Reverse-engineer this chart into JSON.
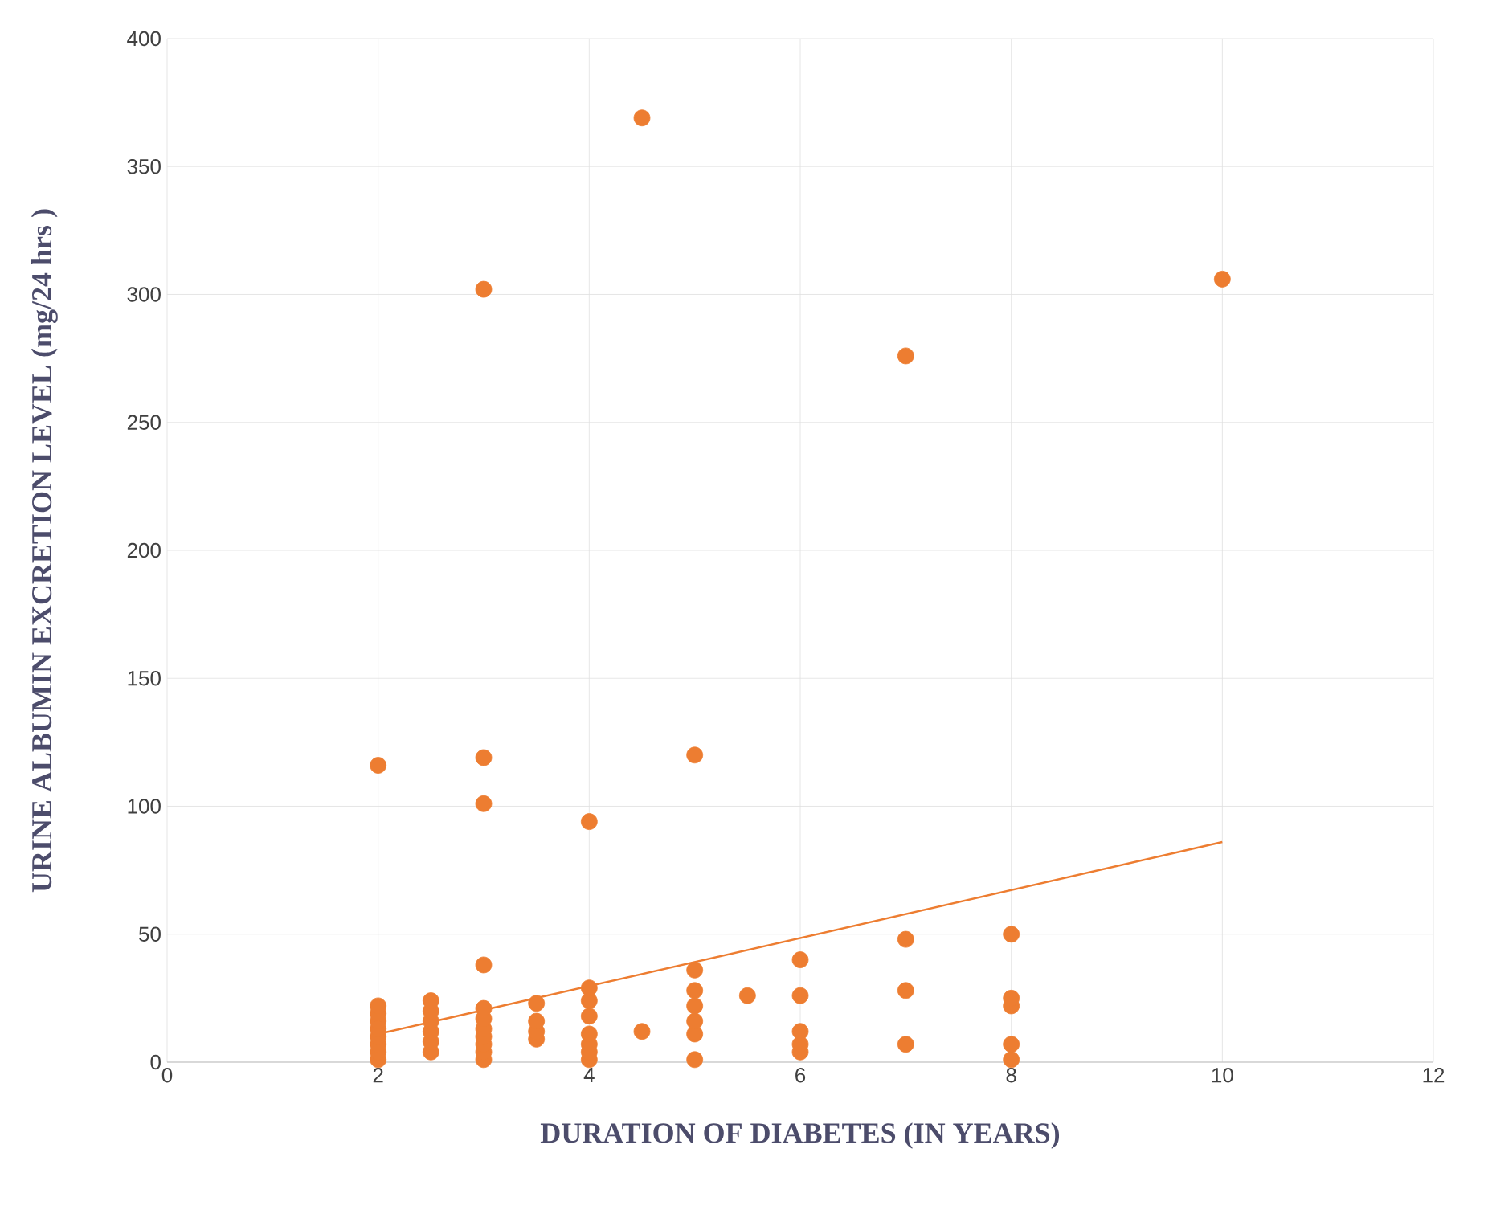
{
  "chart_data": {
    "type": "scatter",
    "xlabel": "DURATION OF DIABETES (IN YEARS)",
    "ylabel": "URINE ALBUMIN EXCRETION LEVEL (mg/24 hrs )",
    "xlim": [
      0,
      12
    ],
    "xticks": [
      0,
      2,
      4,
      6,
      8,
      10,
      12
    ],
    "ylim": [
      0,
      400
    ],
    "yticks": [
      0,
      50,
      100,
      150,
      200,
      250,
      300,
      350,
      400
    ],
    "grid": true,
    "series": [
      {
        "color": "#ed7d31",
        "marker": "circle",
        "x": [
          2,
          2,
          2,
          2,
          2,
          2,
          2,
          2,
          2,
          2.5,
          2.5,
          2.5,
          2.5,
          2.5,
          2.5,
          3,
          3,
          3,
          3,
          3,
          3,
          3,
          3,
          3,
          3,
          3,
          3.5,
          3.5,
          3.5,
          3.5,
          4,
          4,
          4,
          4,
          4,
          4,
          4,
          4,
          4.5,
          4.5,
          5,
          5,
          5,
          5,
          5,
          5,
          5,
          5.5,
          6,
          6,
          6,
          6,
          6,
          7,
          7,
          7,
          7,
          8,
          8,
          8,
          8,
          8,
          10
        ],
        "values": [
          1,
          4,
          7,
          10,
          13,
          16,
          19,
          22,
          116,
          4,
          8,
          12,
          16,
          20,
          24,
          1,
          4,
          7,
          10,
          13,
          17,
          21,
          38,
          101,
          119,
          302,
          9,
          12,
          16,
          23,
          1,
          4,
          7,
          11,
          18,
          24,
          29,
          94,
          12,
          369,
          1,
          11,
          16,
          22,
          28,
          36,
          120,
          26,
          4,
          7,
          12,
          26,
          40,
          7,
          28,
          48,
          276,
          1,
          7,
          22,
          25,
          50,
          306
        ]
      },
      {
        "type": "line",
        "color": "#ed7d31",
        "marker": "none",
        "x": [
          2,
          10
        ],
        "values": [
          11,
          86
        ]
      }
    ]
  }
}
